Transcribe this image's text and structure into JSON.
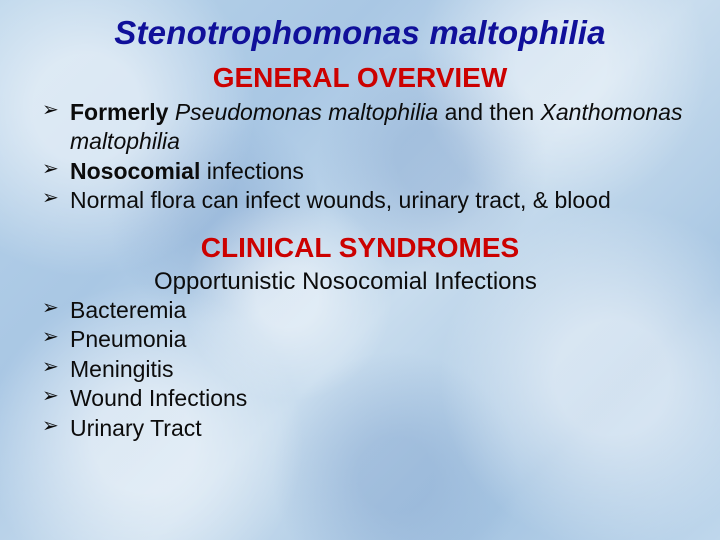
{
  "colors": {
    "title": "#10109a",
    "heading_red": "#cc0100",
    "body_text": "#0c0c0c",
    "bg_base": "#b3cfe8"
  },
  "typography": {
    "title_fontsize_pt": 25,
    "heading_fontsize_pt": 21,
    "body_fontsize_pt": 17,
    "font_family": "Arial"
  },
  "title": "Stenotrophomonas maltophilia",
  "section1": {
    "heading": "GENERAL OVERVIEW",
    "items": [
      {
        "prefix_bold": "Formerly ",
        "mid_ital": "Pseudomonas maltophilia",
        "mid_plain": " and then ",
        "tail_ital": "Xanthomonas maltophilia"
      },
      {
        "prefix_bold": "Nosocomial",
        "tail_plain": " infections"
      },
      {
        "plain": "Normal flora can infect wounds, urinary tract, & blood"
      }
    ]
  },
  "section2": {
    "heading": "CLINICAL SYNDROMES",
    "subheading": "Opportunistic Nosocomial Infections",
    "items": [
      "Bacteremia",
      "Pneumonia",
      "Meningitis",
      "Wound Infections",
      "Urinary Tract"
    ]
  }
}
